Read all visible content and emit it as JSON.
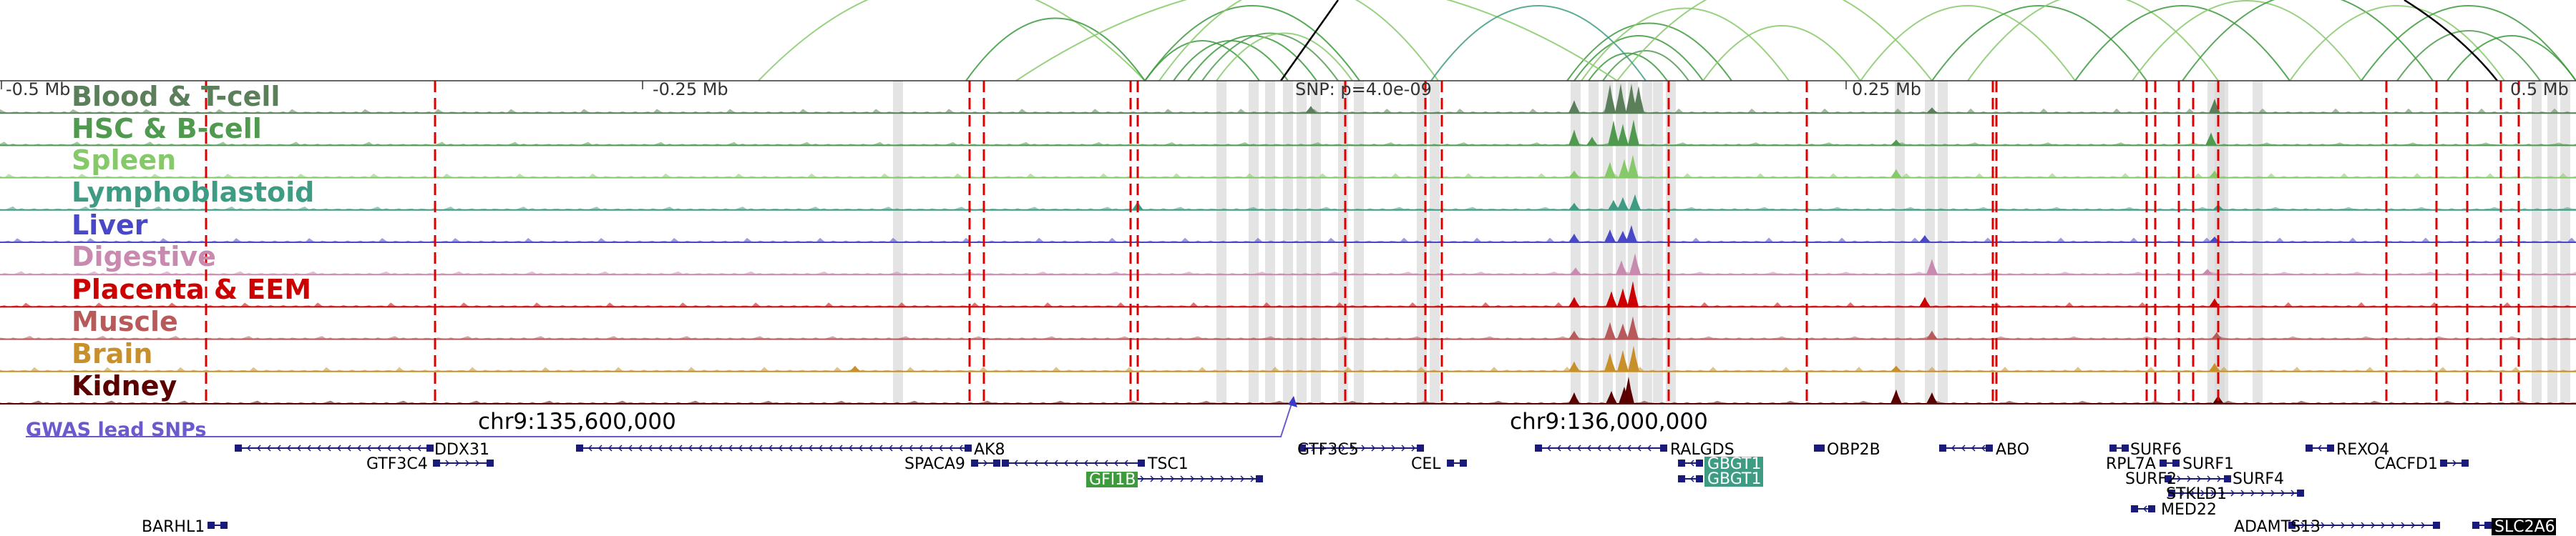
{
  "coordinate_axis": {
    "ticks": [
      "-0.5 Mb",
      "-0.25 Mb",
      "0.25 Mb",
      "0.5 Mb"
    ],
    "snp_label": "SNP: p=4.0e-09"
  },
  "tracks": [
    {
      "name": "Blood & T-cell",
      "color": "#5a7f5a"
    },
    {
      "name": "HSC & B-cell",
      "color": "#4f9a4f"
    },
    {
      "name": "Spleen",
      "color": "#86c96a"
    },
    {
      "name": "Lymphoblastoid",
      "color": "#3f9c84"
    },
    {
      "name": "Liver",
      "color": "#4848c8"
    },
    {
      "name": "Digestive",
      "color": "#c98ab0"
    },
    {
      "name": "Placenta & EEM",
      "color": "#cc0000"
    },
    {
      "name": "Muscle",
      "color": "#b85a5a"
    },
    {
      "name": "Brain",
      "color": "#c8902a"
    },
    {
      "name": "Kidney",
      "color": "#5a0000"
    }
  ],
  "gwas": {
    "label": "GWAS lead SNPs",
    "color": "#6a5acd"
  },
  "genomic_positions": [
    "chr9:135,600,000",
    "chr9:136,000,000"
  ],
  "genes": [
    {
      "name": "DDX31",
      "highlight": false
    },
    {
      "name": "GTF3C4",
      "highlight": false
    },
    {
      "name": "AK8",
      "highlight": false
    },
    {
      "name": "SPACA9",
      "highlight": false
    },
    {
      "name": "TSC1",
      "highlight": false
    },
    {
      "name": "GFI1B",
      "highlight": true
    },
    {
      "name": "GTF3C5",
      "highlight": false
    },
    {
      "name": "CEL",
      "highlight": false
    },
    {
      "name": "RALGDS",
      "highlight": false
    },
    {
      "name": "GBGT1",
      "highlight": true
    },
    {
      "name": "GBGT1",
      "highlight": true
    },
    {
      "name": "OBP2B",
      "highlight": false
    },
    {
      "name": "ABO",
      "highlight": false
    },
    {
      "name": "SURF6",
      "highlight": false
    },
    {
      "name": "RPL7A",
      "highlight": false
    },
    {
      "name": "SURF1",
      "highlight": false
    },
    {
      "name": "SURF2",
      "highlight": false
    },
    {
      "name": "SURF4",
      "highlight": false
    },
    {
      "name": "STKLD1",
      "highlight": false
    },
    {
      "name": "MED22",
      "highlight": false
    },
    {
      "name": "REXO4",
      "highlight": false
    },
    {
      "name": "CACFD1",
      "highlight": false
    },
    {
      "name": "BARHL1",
      "highlight": false
    },
    {
      "name": "ADAMTS13",
      "highlight": false
    },
    {
      "name": "SLC2A6",
      "highlight": true
    }
  ],
  "colors": {
    "gene_body": "#1a1a7a",
    "highlight_gfi1b": "#3d9a3d",
    "highlight_gbgt1": "#3f9c84",
    "highlight_slc2a6": "#000000",
    "red_marker": "#dd0000",
    "gray_band": "#d8d8d8"
  }
}
